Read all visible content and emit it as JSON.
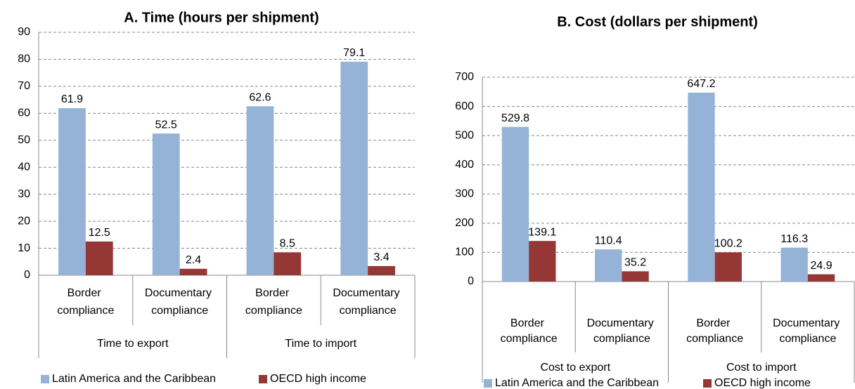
{
  "chart_data": [
    {
      "type": "bar",
      "title": "A.   Time (hours per shipment)",
      "categories": [
        "Border compliance",
        "Documentary compliance",
        "Border compliance",
        "Documentary compliance"
      ],
      "groups": [
        "Time to export",
        "Time to import"
      ],
      "series": [
        {
          "name": "Latin America and the Caribbean",
          "color": "#95b3d7",
          "values": [
            61.9,
            52.5,
            62.6,
            79.1
          ]
        },
        {
          "name": "OECD high income",
          "color": "#953735",
          "values": [
            12.5,
            2.4,
            8.5,
            3.4
          ]
        }
      ],
      "ylim": [
        0,
        90
      ],
      "yticks": [
        0,
        10,
        20,
        30,
        40,
        50,
        60,
        70,
        80,
        90
      ],
      "grid": true,
      "legend": "bottom"
    },
    {
      "type": "bar",
      "title": "B.   Cost (dollars per shipment)",
      "categories": [
        "Border compliance",
        "Documentary compliance",
        "Border compliance",
        "Documentary compliance"
      ],
      "groups": [
        "Cost to export",
        "Cost to import"
      ],
      "series": [
        {
          "name": "Latin America and the Caribbean",
          "color": "#95b3d7",
          "values": [
            529.8,
            110.4,
            647.2,
            116.3
          ]
        },
        {
          "name": "OECD high income",
          "color": "#953735",
          "values": [
            139.1,
            35.2,
            100.2,
            24.9
          ]
        }
      ],
      "ylim": [
        0,
        700
      ],
      "yticks": [
        0,
        100,
        200,
        300,
        400,
        500,
        600,
        700
      ],
      "grid": true,
      "legend": "bottom"
    }
  ]
}
